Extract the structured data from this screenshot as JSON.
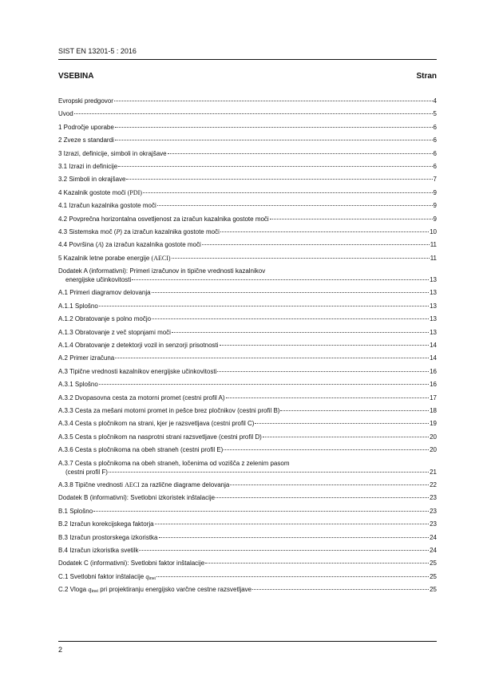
{
  "header": {
    "doc_id": "SIST EN 13201-5 : 2016"
  },
  "heading": {
    "title": "VSEBINA",
    "page_col": "Stran"
  },
  "toc": [
    {
      "lines": [
        [
          {
            "t": "Evropski predgovor"
          }
        ]
      ],
      "page": "4"
    },
    {
      "lines": [
        [
          {
            "t": "Uvod "
          }
        ]
      ],
      "page": "5"
    },
    {
      "lines": [
        [
          {
            "t": "1  Področje uporabe "
          }
        ]
      ],
      "page": "6"
    },
    {
      "lines": [
        [
          {
            "t": "2  Zveze s standardi "
          }
        ]
      ],
      "page": "6"
    },
    {
      "lines": [
        [
          {
            "t": "3  Izrazi, definicije, simboli in okrajšave "
          }
        ]
      ],
      "page": "6"
    },
    {
      "lines": [
        [
          {
            "t": "3.1  Izrazi in definicije "
          }
        ]
      ],
      "page": "6"
    },
    {
      "lines": [
        [
          {
            "t": "3.2  Simboli in okrajšave "
          }
        ]
      ],
      "page": "7"
    },
    {
      "lines": [
        [
          {
            "t": "4  Kazalnik gostote moči "
          },
          {
            "t": "(PDI)",
            "s": "serif"
          },
          {
            "t": " "
          }
        ]
      ],
      "page": "9"
    },
    {
      "lines": [
        [
          {
            "t": "4.1  Izračun kazalnika gostote moči "
          }
        ]
      ],
      "page": "9"
    },
    {
      "lines": [
        [
          {
            "t": "4.2  Povprečna horizontalna osvetljenost za izračun kazalnika gostote moči "
          }
        ]
      ],
      "page": "9"
    },
    {
      "lines": [
        [
          {
            "t": "4.3  Sistemska moč ("
          },
          {
            "t": "P",
            "s": "it"
          },
          {
            "t": ") za izračun kazalnika gostote moči "
          }
        ]
      ],
      "page": "10"
    },
    {
      "lines": [
        [
          {
            "t": "4.4  Površina ("
          },
          {
            "t": "A",
            "s": "it"
          },
          {
            "t": ") za izračun kazalnika gostote moči "
          }
        ]
      ],
      "page": "11"
    },
    {
      "lines": [
        [
          {
            "t": "5  Kazalnik letne porabe energije "
          },
          {
            "t": "(AECI)",
            "s": "serif"
          },
          {
            "t": " "
          }
        ]
      ],
      "page": "11"
    },
    {
      "lines": [
        [
          {
            "t": "Dodatek A (informativni): Primeri izračunov in tipične vrednosti kazalnikov"
          }
        ],
        [
          {
            "t": "energijske učinkovitosti "
          }
        ]
      ],
      "page": "13"
    },
    {
      "lines": [
        [
          {
            "t": "A.1  Primeri diagramov delovanja "
          }
        ]
      ],
      "page": "13"
    },
    {
      "lines": [
        [
          {
            "t": "A.1.1  Splošno "
          }
        ]
      ],
      "page": "13"
    },
    {
      "lines": [
        [
          {
            "t": "A.1.2  Obratovanje s polno močjo "
          }
        ]
      ],
      "page": "13"
    },
    {
      "lines": [
        [
          {
            "t": "A.1.3  Obratovanje z več stopnjami moči "
          }
        ]
      ],
      "page": "13"
    },
    {
      "lines": [
        [
          {
            "t": "A.1.4  Obratovanje z detektorji vozil in senzorji prisotnosti "
          }
        ]
      ],
      "page": "14"
    },
    {
      "lines": [
        [
          {
            "t": "A.2  Primer izračuna "
          }
        ]
      ],
      "page": "14"
    },
    {
      "lines": [
        [
          {
            "t": "A.3  Tipične vrednosti kazalnikov energijske učinkovitosti "
          }
        ]
      ],
      "page": "16"
    },
    {
      "lines": [
        [
          {
            "t": "A.3.1  Splošno "
          }
        ]
      ],
      "page": "16"
    },
    {
      "lines": [
        [
          {
            "t": "A.3.2  Dvopasovna cesta za motorni promet (cestni profil A) "
          }
        ]
      ],
      "page": "17"
    },
    {
      "lines": [
        [
          {
            "t": "A.3.3  Cesta za mešani motorni promet in pešce brez pločnikov (cestni profil B) "
          }
        ]
      ],
      "page": "18"
    },
    {
      "lines": [
        [
          {
            "t": "A.3.4  Cesta s pločnikom na strani, kjer je razsvetljava (cestni profil C) "
          }
        ]
      ],
      "page": "19"
    },
    {
      "lines": [
        [
          {
            "t": "A.3.5  Cesta s pločnikom na nasprotni strani razsvetljave (cestni profil D) "
          }
        ]
      ],
      "page": "20"
    },
    {
      "lines": [
        [
          {
            "t": "A.3.6  Cesta s pločnikoma na obeh straneh (cestni profil E) "
          }
        ]
      ],
      "page": "20"
    },
    {
      "lines": [
        [
          {
            "t": "A.3.7  Cesta s pločnikoma na obeh straneh, ločenima od vozišča z zelenim pasom"
          }
        ],
        [
          {
            "t": "(cestni profil F) "
          }
        ]
      ],
      "page": "21"
    },
    {
      "lines": [
        [
          {
            "t": "A.3.8  Tipične vrednosti "
          },
          {
            "t": "AECI",
            "s": "serif"
          },
          {
            "t": " za različne diagrame delovanja "
          }
        ]
      ],
      "page": "22"
    },
    {
      "lines": [
        [
          {
            "t": "Dodatek B (informativni): Svetlobni izkoristek inštalacije "
          }
        ]
      ],
      "page": "23"
    },
    {
      "lines": [
        [
          {
            "t": "B.1  Splošno "
          }
        ]
      ],
      "page": "23"
    },
    {
      "lines": [
        [
          {
            "t": "B.2  Izračun korekcijskega faktorja "
          }
        ]
      ],
      "page": "23"
    },
    {
      "lines": [
        [
          {
            "t": "B.3  Izračun prostorskega izkoristka "
          }
        ]
      ],
      "page": "24"
    },
    {
      "lines": [
        [
          {
            "t": "B.4  Izračun izkoristka svetilk "
          }
        ]
      ],
      "page": "24"
    },
    {
      "lines": [
        [
          {
            "t": "Dodatek C (informativni): Svetlobni faktor inštalacije "
          }
        ]
      ],
      "page": "25"
    },
    {
      "lines": [
        [
          {
            "t": "C.1  Svetlobni faktor inštalacije "
          },
          {
            "t": "q",
            "s": "it"
          },
          {
            "t": "inst",
            "s": "sub"
          },
          {
            "t": " "
          }
        ]
      ],
      "page": "25"
    },
    {
      "lines": [
        [
          {
            "t": "C.2  Vloga "
          },
          {
            "t": "q",
            "s": "it"
          },
          {
            "t": "inst",
            "s": "sub"
          },
          {
            "t": " pri projektiranju energijsko varčne cestne razsvetljave "
          }
        ]
      ],
      "page": "25"
    }
  ],
  "footer": {
    "page_number": "2"
  }
}
